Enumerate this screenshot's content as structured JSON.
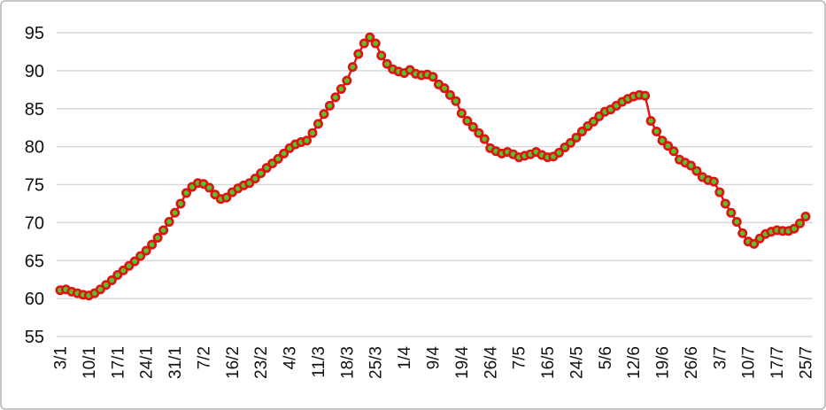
{
  "chart_data": {
    "type": "line",
    "title": "",
    "xlabel": "",
    "ylabel": "",
    "legend_position": "none",
    "grid": "horizontal",
    "ylim": [
      55,
      95
    ],
    "y_ticks": [
      55,
      60,
      65,
      70,
      75,
      80,
      85,
      90,
      95
    ],
    "x_tick_labels": [
      "3/1",
      "10/1",
      "17/1",
      "24/1",
      "31/1",
      "7/2",
      "16/2",
      "23/2",
      "4/3",
      "11/3",
      "18/3",
      "25/3",
      "1/4",
      "9/4",
      "19/4",
      "26/4",
      "7/5",
      "16/5",
      "24/5",
      "5/6",
      "12/6",
      "19/6",
      "26/6",
      "3/7",
      "10/7",
      "17/7",
      "25/7"
    ],
    "points_per_label": 5,
    "marker_shape": "circle",
    "series": [
      {
        "name": "",
        "values": [
          61.1,
          61.2,
          60.9,
          60.7,
          60.5,
          60.4,
          60.7,
          61.2,
          61.8,
          62.4,
          63.1,
          63.7,
          64.3,
          64.9,
          65.6,
          66.3,
          67.1,
          68.0,
          69.0,
          70.1,
          71.3,
          72.5,
          73.9,
          74.7,
          75.2,
          75.1,
          74.6,
          73.7,
          73.1,
          73.3,
          74.0,
          74.5,
          74.9,
          75.2,
          75.8,
          76.5,
          77.2,
          77.8,
          78.4,
          79.1,
          79.8,
          80.3,
          80.6,
          80.8,
          81.8,
          83.0,
          84.3,
          85.4,
          86.5,
          87.6,
          88.7,
          90.5,
          92.2,
          93.6,
          94.4,
          93.6,
          92.0,
          90.9,
          90.2,
          89.9,
          89.7,
          90.1,
          89.6,
          89.4,
          89.5,
          89.2,
          88.2,
          87.7,
          86.8,
          86.0,
          84.4,
          83.4,
          82.6,
          81.8,
          81.0,
          79.8,
          79.4,
          79.1,
          79.3,
          79.0,
          78.6,
          78.8,
          79.0,
          79.3,
          78.9,
          78.6,
          78.7,
          79.2,
          79.9,
          80.5,
          81.2,
          82.0,
          82.7,
          83.3,
          84.0,
          84.6,
          84.9,
          85.4,
          85.9,
          86.3,
          86.6,
          86.8,
          86.7,
          83.4,
          82.0,
          80.8,
          80.1,
          79.4,
          78.3,
          77.9,
          77.5,
          76.8,
          76.0,
          75.6,
          75.4,
          74.0,
          72.5,
          71.3,
          70.1,
          68.6,
          67.5,
          67.2,
          67.9,
          68.5,
          68.8,
          69.0,
          68.9,
          68.9,
          69.2,
          69.9,
          70.8
        ]
      }
    ],
    "colors": {
      "line": "#E01212",
      "marker_fill": "#56C32A",
      "marker_stroke": "#E01212",
      "gridline": "#D9D9D9",
      "axis_text": "#111111",
      "frame_border": "#B3B3B3",
      "background": "#FFFFFF"
    }
  }
}
